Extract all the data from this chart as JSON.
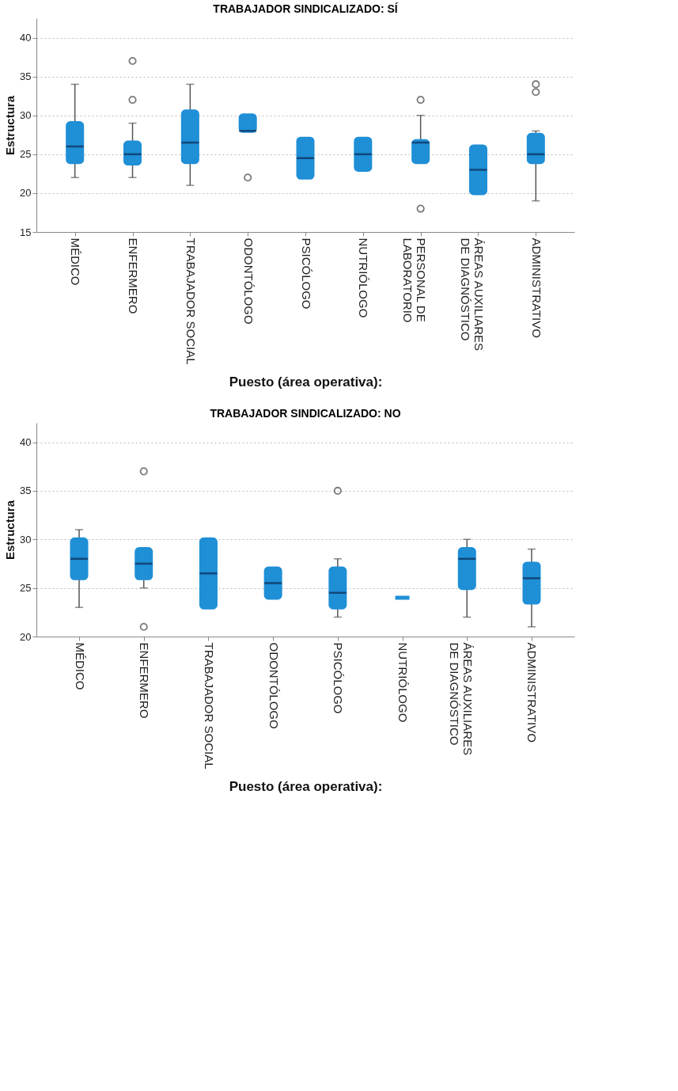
{
  "chart_data": [
    {
      "type": "box",
      "title": "TRABAJADOR SINDICALIZADO: SÍ",
      "xlabel": "Puesto (área operativa):",
      "ylabel": "Estructura",
      "color": "#1f8fd6",
      "grid": "y",
      "categories": [
        "MÉDICO",
        "ENFERMERO",
        "TRABAJADOR SOCIAL",
        "ODONTÓLOGO",
        "PSICÓLOGO",
        "NUTRIÓLOGO",
        "PERSONAL DE\nLABORATORIO",
        "ÁREAS AUXILIARES\nDE DIAGNÓSTICO",
        "ADMINISTRATIVO"
      ],
      "boxes": [
        {
          "low": 22,
          "q1": 24,
          "median": 26,
          "q3": 29,
          "high": 34
        },
        {
          "low": 22,
          "q1": 23.8,
          "median": 25,
          "q3": 26.5,
          "high": 29,
          "outliers": [
            32,
            37
          ]
        },
        {
          "low": 21,
          "q1": 24,
          "median": 26.5,
          "q3": 30.5,
          "high": 34
        },
        {
          "low": 28,
          "q1": 28,
          "median": 28,
          "q3": 30,
          "high": 30,
          "outliers": [
            22
          ]
        },
        {
          "low": 22,
          "q1": 22,
          "median": 24.5,
          "q3": 27,
          "high": 27
        },
        {
          "low": 23,
          "q1": 23,
          "median": 25,
          "q3": 27,
          "high": 27
        },
        {
          "low": 24,
          "q1": 24,
          "median": 26.5,
          "q3": 26.7,
          "high": 30,
          "outliers": [
            32,
            18
          ]
        },
        {
          "low": 20,
          "q1": 20,
          "median": 23,
          "q3": 26,
          "high": 26
        },
        {
          "low": 19,
          "q1": 24,
          "median": 25,
          "q3": 27.5,
          "high": 28,
          "outliers": [
            33,
            34
          ]
        }
      ],
      "ylim": [
        15,
        42.5
      ],
      "yticks": [
        15,
        20,
        25,
        30,
        35,
        40
      ]
    },
    {
      "type": "box",
      "title": "TRABAJADOR SINDICALIZADO: NO",
      "xlabel": "Puesto (área operativa):",
      "ylabel": "Estructura",
      "color": "#1f8fd6",
      "grid": "y",
      "categories": [
        "MÉDICO",
        "ENFERMERO",
        "TRABAJADOR SOCIAL",
        "ODONTÓLOGO",
        "PSICÓLOGO",
        "NUTRIÓLOGO",
        "ÁREAS AUXILIARES\nDE DIAGNÓSTICO",
        "ADMINISTRATIVO"
      ],
      "boxes": [
        {
          "low": 23,
          "q1": 26,
          "median": 28,
          "q3": 30,
          "high": 31
        },
        {
          "low": 25,
          "q1": 26,
          "median": 27.5,
          "q3": 29,
          "high": 29,
          "outliers": [
            37,
            21
          ]
        },
        {
          "low": 23,
          "q1": 23,
          "median": 26.5,
          "q3": 30,
          "high": 30
        },
        {
          "low": 24,
          "q1": 24,
          "median": 25.5,
          "q3": 27,
          "high": 27
        },
        {
          "low": 22,
          "q1": 23,
          "median": 24.5,
          "q3": 27,
          "high": 28,
          "outliers": [
            35
          ]
        },
        {
          "low": 24,
          "q1": 24,
          "median": 24,
          "q3": 24,
          "high": 24
        },
        {
          "low": 22,
          "q1": 25,
          "median": 28,
          "q3": 29,
          "high": 30
        },
        {
          "low": 21,
          "q1": 23.5,
          "median": 26,
          "q3": 27.5,
          "high": 29
        }
      ],
      "ylim": [
        20,
        42
      ],
      "yticks": [
        20,
        25,
        30,
        35,
        40
      ]
    }
  ]
}
